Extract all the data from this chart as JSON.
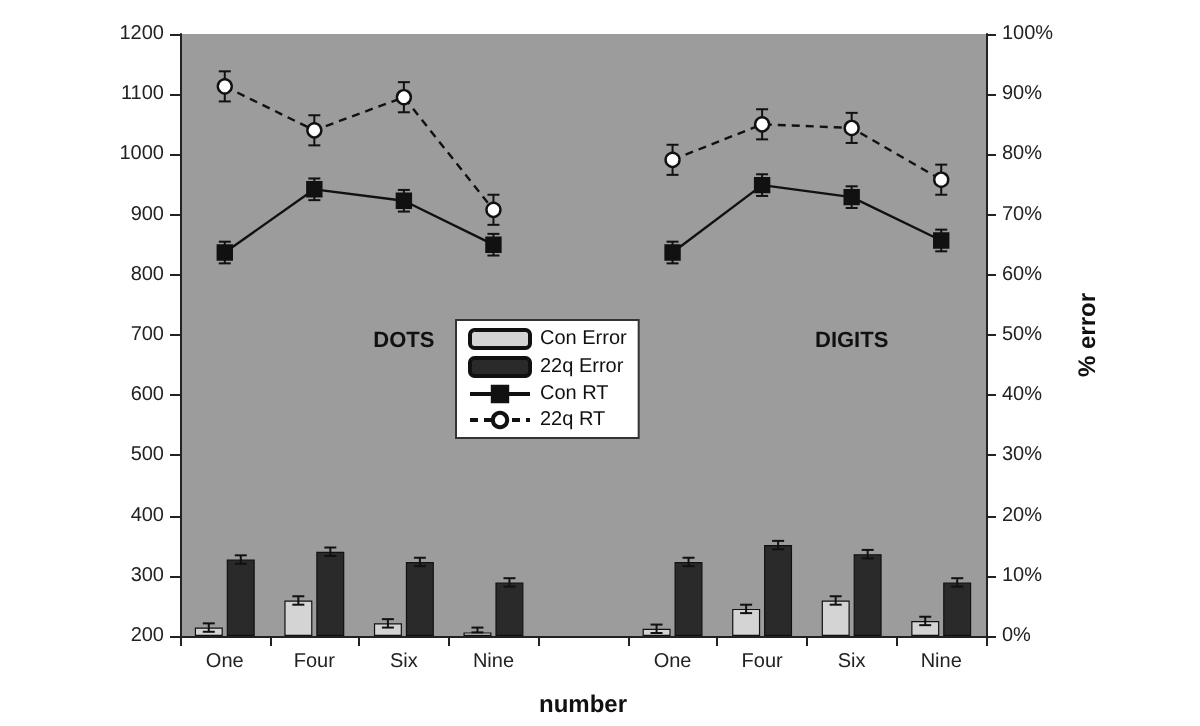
{
  "chart_data": {
    "type": "line",
    "xlabel": "number",
    "y2label": "% error",
    "categories": [
      "One",
      "Four",
      "Six",
      "Nine",
      null,
      "One",
      "Four",
      "Six",
      "Nine"
    ],
    "series": [
      {
        "name": "Con Error",
        "type": "bar",
        "axis": "y2",
        "color": "#d4d4d4",
        "values": [
          1.4,
          5.9,
          2.1,
          0.6,
          null,
          1.2,
          4.5,
          5.9,
          2.5
        ],
        "errors": [
          0.7,
          0.7,
          0.7,
          [
            0.6,
            1.4
          ],
          null,
          0.7,
          0.7,
          0.7,
          0.7
        ]
      },
      {
        "name": "22q Error",
        "type": "bar",
        "axis": "y2",
        "color": "#2a2a2a",
        "values": [
          12.7,
          14.0,
          12.3,
          8.9,
          null,
          12.3,
          15.1,
          13.6,
          8.9
        ],
        "errors": [
          0.7,
          0.7,
          0.7,
          0.7,
          null,
          0.7,
          0.7,
          0.7,
          0.7
        ]
      },
      {
        "name": "Con RT",
        "color": "#111111",
        "marker": "square",
        "line_style": "solid",
        "values": [
          837,
          942,
          923,
          850,
          null,
          837,
          949,
          929,
          857
        ],
        "errors": [
          18,
          18,
          18,
          18,
          null,
          18,
          18,
          18,
          18
        ]
      },
      {
        "name": "22q RT",
        "color": "#111111",
        "marker": "circle",
        "line_style": "dashed",
        "values": [
          1113,
          1040,
          1095,
          908,
          null,
          991,
          1050,
          1044,
          958
        ],
        "errors": [
          25,
          25,
          25,
          25,
          null,
          25,
          25,
          25,
          25
        ]
      }
    ],
    "annotations": [
      "DOTS",
      "DIGITS"
    ],
    "ylim": [
      200,
      1200
    ],
    "yticks": [
      200,
      300,
      400,
      500,
      600,
      700,
      800,
      900,
      1000,
      1100,
      1200
    ],
    "y2lim": [
      0,
      100
    ],
    "y2ticks": [
      {
        "value": 0,
        "label": "0%"
      },
      {
        "value": 10,
        "label": "10%"
      },
      {
        "value": 20,
        "label": "20%"
      },
      {
        "value": 30,
        "label": "30%"
      },
      {
        "value": 40,
        "label": "40%"
      },
      {
        "value": 50,
        "label": "50%"
      },
      {
        "value": 60,
        "label": "60%"
      },
      {
        "value": 70,
        "label": "70%"
      },
      {
        "value": 80,
        "label": "80%"
      },
      {
        "value": 90,
        "label": "90%"
      },
      {
        "value": 100,
        "label": "100%"
      }
    ],
    "grid": false,
    "legend": "center"
  }
}
